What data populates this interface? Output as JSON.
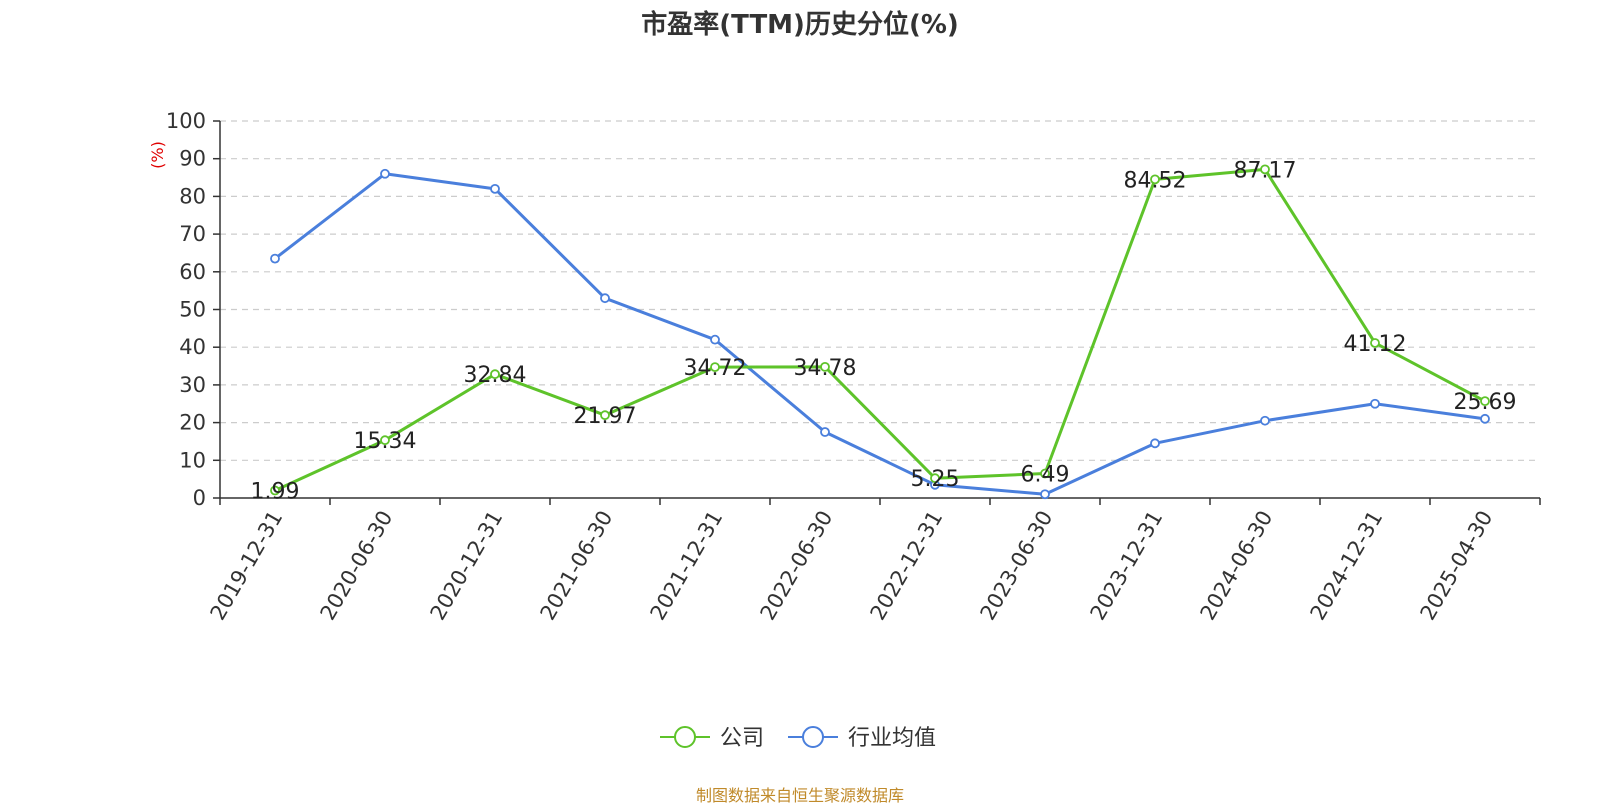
{
  "title": "市盈率(TTM)历史分位(%)",
  "footer": "制图数据来自恒生聚源数据库",
  "colors": {
    "company": "#5ec32a",
    "industry": "#4a7fdc",
    "grid": "#cccccc",
    "axis": "#333333"
  },
  "chart_data": {
    "type": "line",
    "title": "市盈率(TTM)历史分位(%)",
    "ylabel": "(%)",
    "xlabel": "",
    "ylim": [
      0,
      100
    ],
    "yticks": [
      0,
      10,
      20,
      30,
      40,
      50,
      60,
      70,
      80,
      90,
      100
    ],
    "grid": true,
    "legend_position": "bottom-center",
    "categories": [
      "2019-12-31",
      "2020-06-30",
      "2020-12-31",
      "2021-06-30",
      "2021-12-31",
      "2022-06-30",
      "2022-12-31",
      "2023-06-30",
      "2023-12-31",
      "2024-06-30",
      "2024-12-31",
      "2025-04-30"
    ],
    "series": [
      {
        "name": "公司",
        "color": "#5ec32a",
        "values": [
          1.99,
          15.34,
          32.84,
          21.97,
          34.72,
          34.78,
          5.25,
          6.49,
          84.52,
          87.17,
          41.12,
          25.69
        ],
        "labels": [
          "1.99",
          "15.34",
          "32.84",
          "21.97",
          "34.72",
          "34.78",
          "5.25",
          "6.49",
          "84.52",
          "87.17",
          "41.12",
          "25.69"
        ]
      },
      {
        "name": "行业均值",
        "color": "#4a7fdc",
        "values": [
          63.5,
          86,
          82,
          53,
          42,
          17.5,
          3.5,
          1,
          14.5,
          20.5,
          25,
          21
        ]
      }
    ]
  }
}
